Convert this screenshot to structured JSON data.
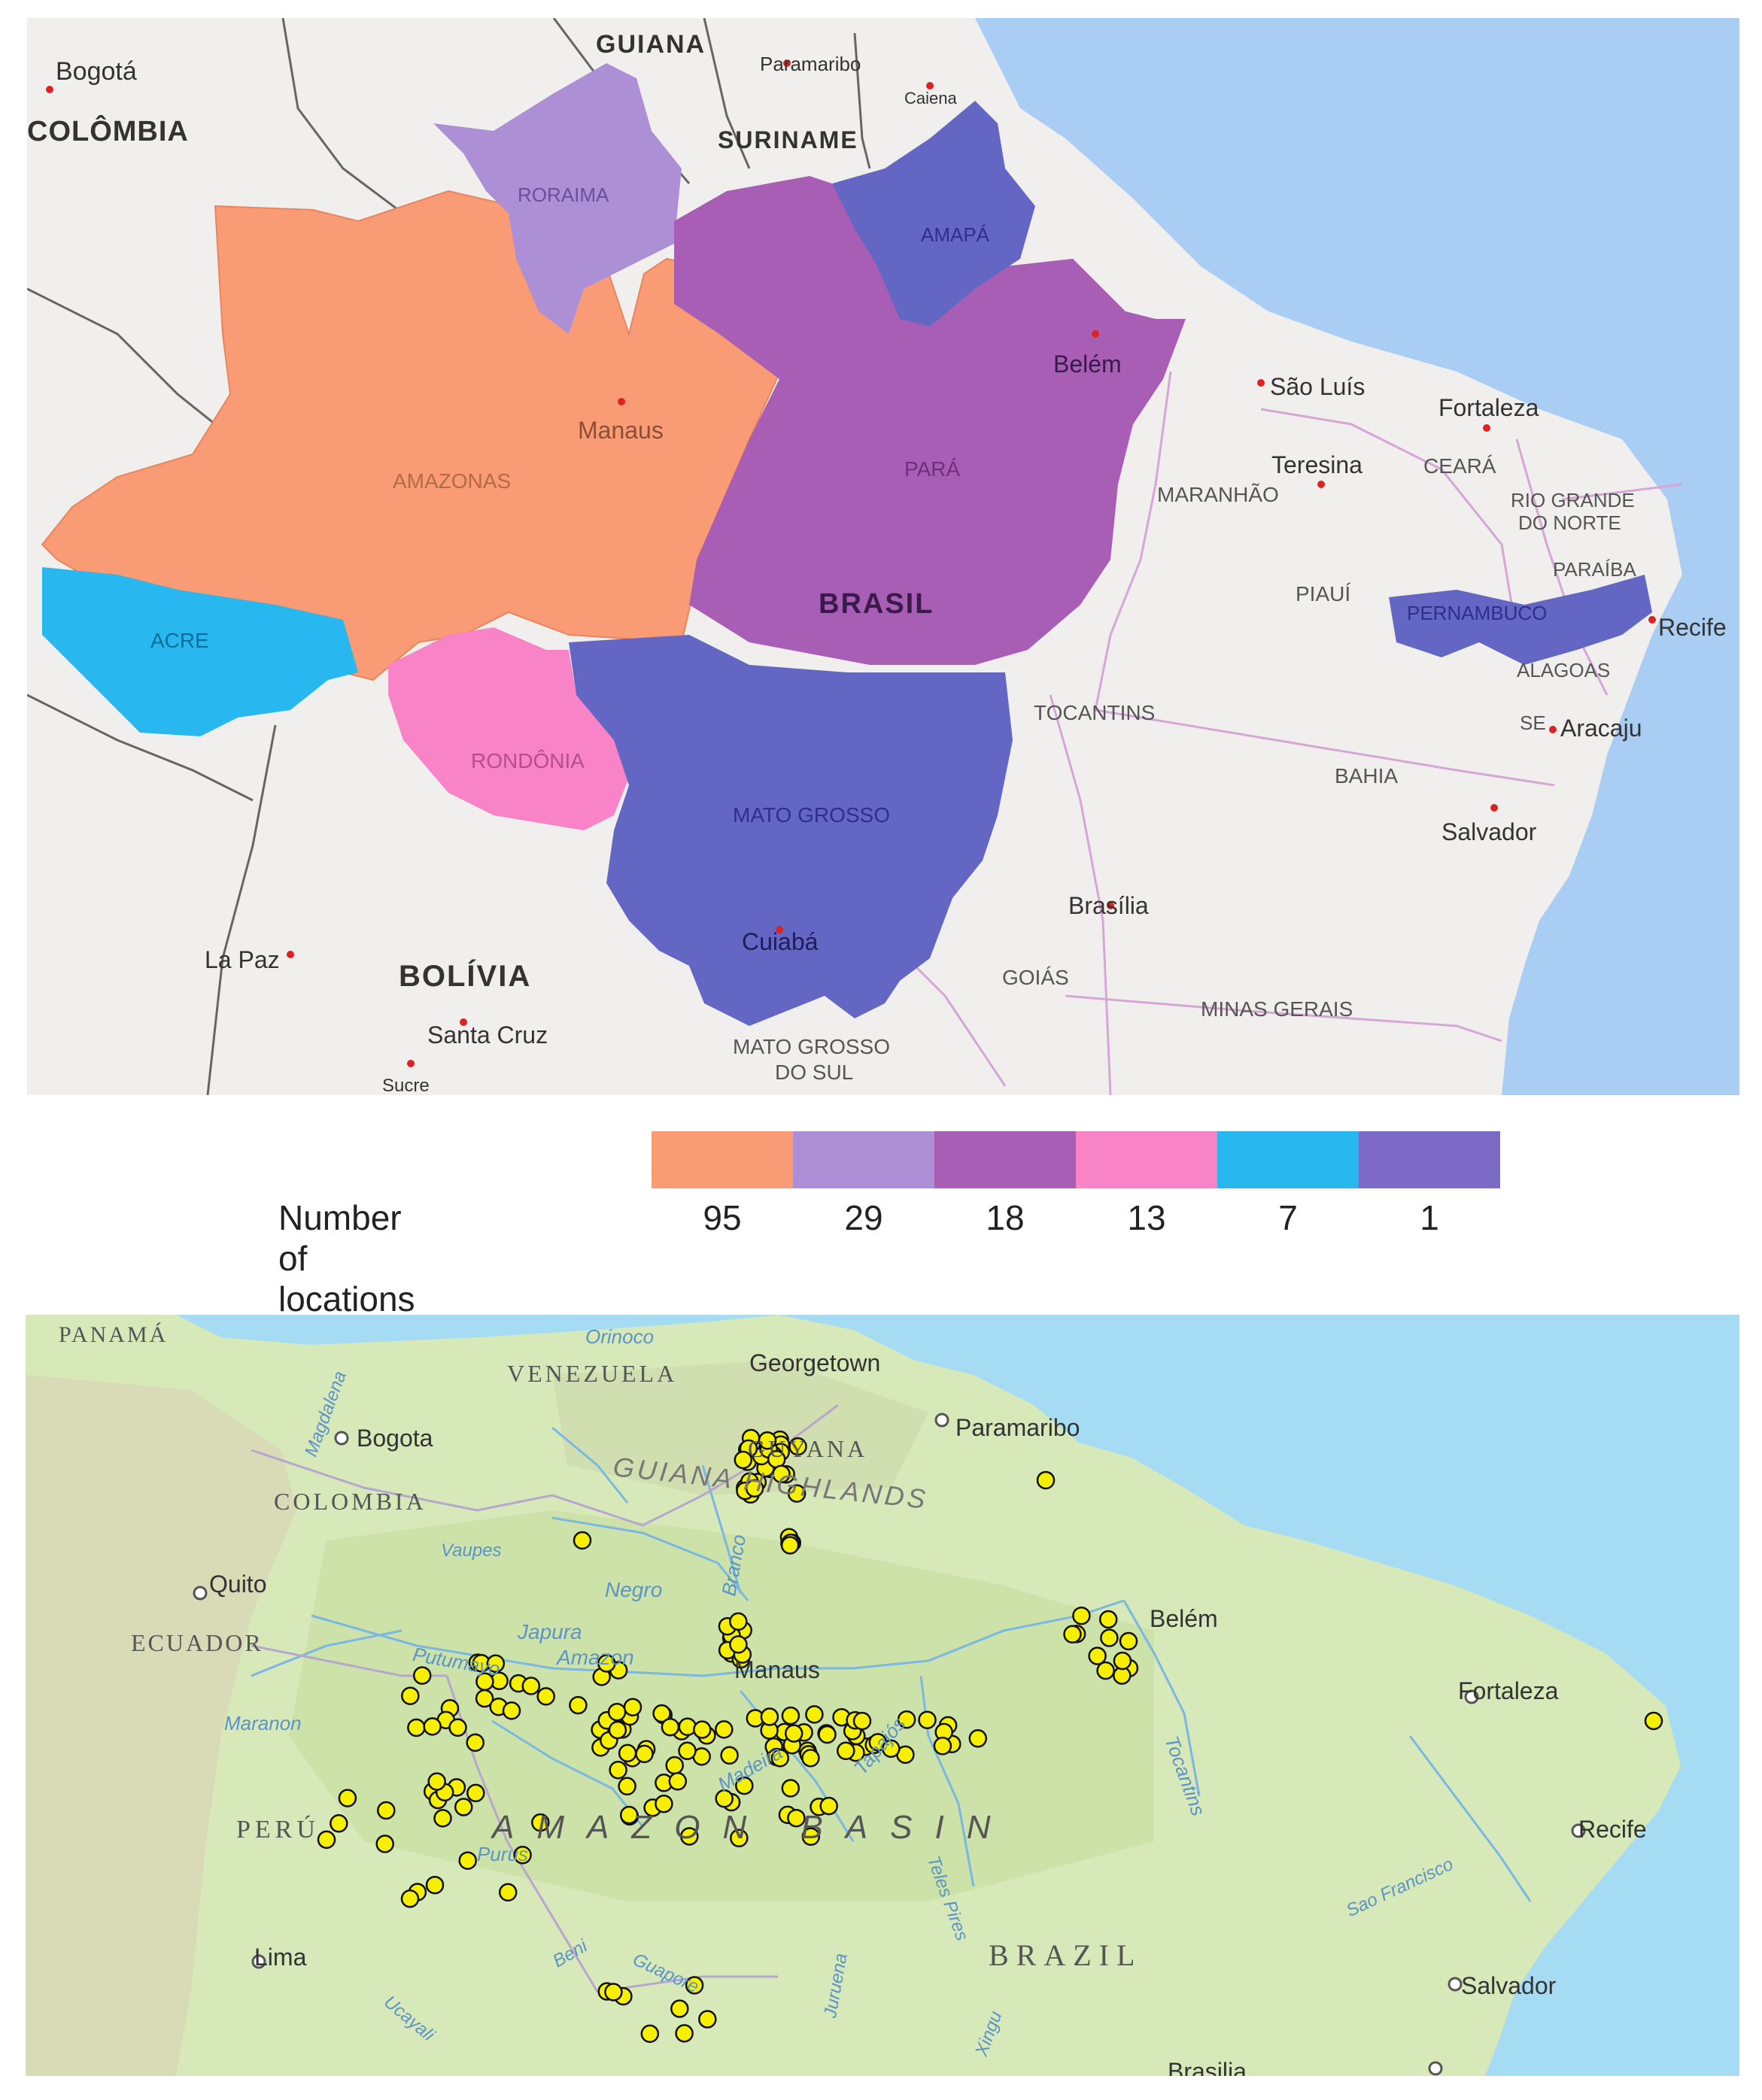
{
  "top_map": {
    "country_labels": [
      "GUIANA",
      "COLÔMBIA",
      "SURINAME",
      "BRASIL",
      "BOLÍVIA"
    ],
    "state_labels": {
      "roraima": "RORAIMA",
      "amapa": "AMAPÁ",
      "amazonas": "AMAZONAS",
      "para": "PARÁ",
      "acre": "ACRE",
      "rondonia": "RONDÔNIA",
      "mato_grosso": "MATO GROSSO",
      "pernambuco": "PERNAMBUCO",
      "maranhao": "MARANHÃO",
      "ceara": "CEARÁ",
      "rio_grande_do_norte_1": "RIO GRANDE",
      "rio_grande_do_norte_2": "DO NORTE",
      "paraiba": "PARAÍBA",
      "piaui": "PIAUÍ",
      "alagoas": "ALAGOAS",
      "sergipe": "SE",
      "tocantins": "TOCANTINS",
      "bahia": "BAHIA",
      "goias": "GOIÁS",
      "minas_gerais": "MINAS GERAIS",
      "mato_grosso_do_sul_1": "MATO GROSSO",
      "mato_grosso_do_sul_2": "DO SUL"
    },
    "city_labels": {
      "bogota": "Bogotá",
      "paramaribo": "Paramaribo",
      "caiena": "Caiena",
      "manaus": "Manaus",
      "belem": "Belém",
      "sao_luis": "São Luís",
      "fortaleza": "Fortaleza",
      "teresina": "Teresina",
      "recife": "Recife",
      "aracaju": "Aracaju",
      "salvador": "Salvador",
      "brasilia": "Brasília",
      "cuiaba": "Cuiabá",
      "la_paz": "La Paz",
      "santa_cruz": "Santa Cruz",
      "sucre": "Sucre"
    },
    "state_colors": {
      "amazonas": "#f99c76",
      "roraima": "#ad8fd6",
      "para": "#a85eb5",
      "acre": "#29b7ef",
      "rondonia": "#f883c6",
      "mato_grosso": "#6466c4",
      "amapa": "#6466c4",
      "pernambuco": "#6466c4"
    }
  },
  "legend": {
    "title": "Number of locations",
    "entries": [
      {
        "value": "95",
        "color": "#f99c76"
      },
      {
        "value": "29",
        "color": "#ad8fd6"
      },
      {
        "value": "18",
        "color": "#a85eb5"
      },
      {
        "value": "13",
        "color": "#f883c6"
      },
      {
        "value": "7",
        "color": "#29b7ef"
      },
      {
        "value": "1",
        "color": "#7b6bc6"
      }
    ]
  },
  "bottom_map": {
    "country_labels": [
      "PANAMÁ",
      "VENEZUELA",
      "COLOMBIA",
      "ECUADOR",
      "PERÚ",
      "GUYANA",
      "BRAZIL"
    ],
    "region_labels": [
      "GUIANA HIGHLANDS",
      "AMAZON BASIN"
    ],
    "river_labels": [
      "Orinoco",
      "Magdalena",
      "Vaupes",
      "Negro",
      "Branco",
      "Japura",
      "Putumayo",
      "Amazon",
      "Maranon",
      "Purus",
      "Madeira",
      "Tapajós",
      "Tocantins",
      "Teles Pires",
      "Juruena",
      "Xingu",
      "Beni",
      "Guapore",
      "Ucayali",
      "Sao Francisco"
    ],
    "city_labels": [
      "Georgetown",
      "Paramaribo",
      "Bogota",
      "Quito",
      "Manaus",
      "Belém",
      "Fortaleza",
      "Recife",
      "Lima",
      "Salvador",
      "Brasilia"
    ],
    "marker_color": "#f6f000",
    "marker_count": 200
  }
}
